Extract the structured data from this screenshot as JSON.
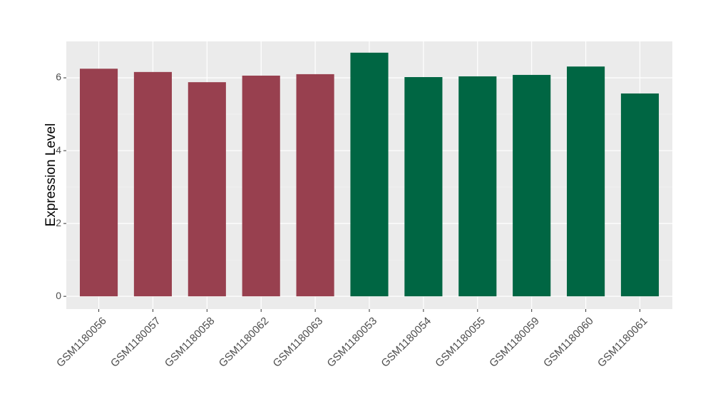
{
  "chart_data": {
    "type": "bar",
    "y_label": "Expression Level",
    "categories": [
      "GSM1180056",
      "GSM1180057",
      "GSM1180058",
      "GSM1180062",
      "GSM1180063",
      "GSM1180053",
      "GSM1180054",
      "GSM1180055",
      "GSM1180059",
      "GSM1180060",
      "GSM1180061"
    ],
    "values": [
      6.25,
      6.16,
      5.88,
      6.06,
      6.1,
      6.69,
      6.02,
      6.04,
      6.08,
      6.31,
      5.57
    ],
    "colors": [
      "#98404f",
      "#98404f",
      "#98404f",
      "#98404f",
      "#98404f",
      "#006643",
      "#006643",
      "#006643",
      "#006643",
      "#006643",
      "#006643"
    ],
    "ylim": [
      -0.35,
      7.0
    ],
    "yticks": [
      0,
      2,
      4,
      6
    ],
    "grid": true,
    "minor_grid": true
  }
}
